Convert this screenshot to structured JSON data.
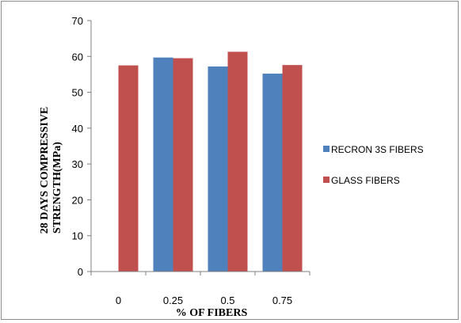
{
  "chart_data": {
    "type": "bar",
    "categories": [
      "0",
      "0.25",
      "0.5",
      "0.75"
    ],
    "series": [
      {
        "name": "RECRON 3S FIBERS",
        "values": [
          null,
          59.7,
          57.2,
          55.2
        ],
        "color": "#4f81bd"
      },
      {
        "name": "GLASS FIBERS",
        "values": [
          57.5,
          59.5,
          61.3,
          57.6
        ],
        "color": "#c0504d"
      }
    ],
    "title": "",
    "xlabel": "% OF  FIBERS",
    "ylabel": "28 DAYS COMPRESSIVE STRENGTH(MPa)",
    "ylabel_lines": [
      "28 DAYS COMPRESSIVE",
      "STRENGTH(MPa)"
    ],
    "ylim": [
      0,
      70
    ],
    "yticks": [
      0,
      10,
      20,
      30,
      40,
      50,
      60,
      70
    ],
    "grid": false,
    "legend": "right"
  }
}
